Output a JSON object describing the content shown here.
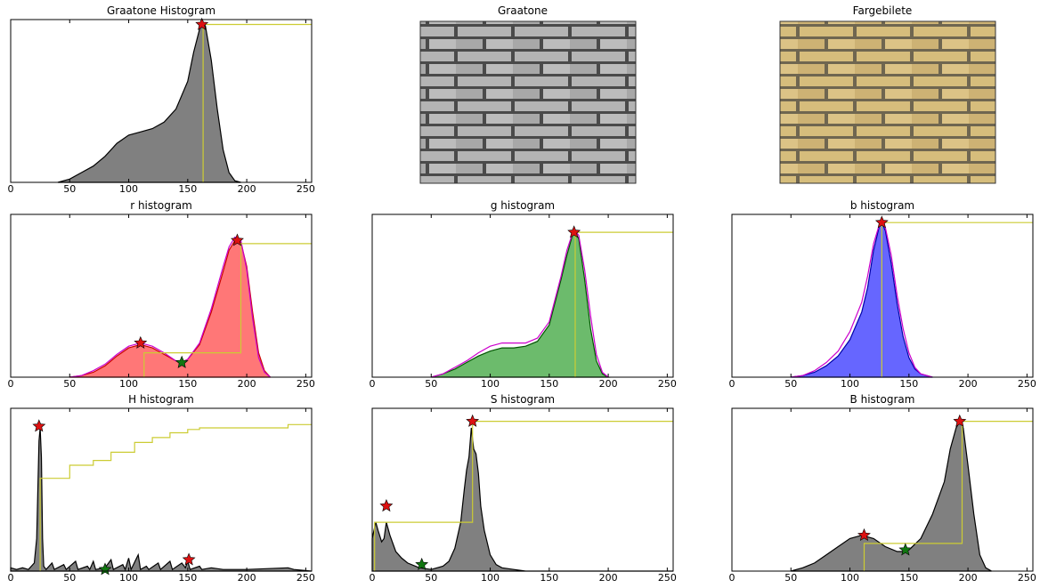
{
  "chart_data": [
    {
      "type": "area",
      "title": "Graatone Histogram",
      "xlim": [
        0,
        255
      ],
      "ylim": [
        0,
        100
      ],
      "xticks": [
        0,
        50,
        100,
        150,
        200,
        250
      ],
      "series": [
        {
          "color": "#808080",
          "edge": "#000000",
          "style": "fill",
          "x": [
            40,
            50,
            60,
            70,
            80,
            90,
            100,
            110,
            120,
            130,
            140,
            150,
            155,
            160,
            163,
            165,
            170,
            175,
            180,
            185,
            190,
            195
          ],
          "values": [
            0,
            2,
            6,
            10,
            16,
            24,
            29,
            31,
            33,
            37,
            45,
            62,
            80,
            94,
            98,
            96,
            75,
            45,
            20,
            6,
            1,
            0
          ]
        },
        {
          "color": "#cccc33",
          "style": "line",
          "x": [
            163,
            163,
            255
          ],
          "values": [
            0,
            97,
            97
          ]
        }
      ],
      "markers": [
        {
          "x": 162,
          "y": 97,
          "color": "#dd1111"
        }
      ]
    },
    {
      "type": "image",
      "title": "Graatone",
      "color": "gray"
    },
    {
      "type": "image",
      "title": "Fargebilete",
      "color": "yellow"
    },
    {
      "type": "area",
      "title": "r histogram",
      "xlim": [
        0,
        255
      ],
      "ylim": [
        0,
        100
      ],
      "xticks": [
        0,
        50,
        100,
        150,
        200,
        250
      ],
      "series": [
        {
          "color": "#ff7777",
          "edge": "#cc0000",
          "style": "fill",
          "x": [
            50,
            60,
            70,
            80,
            90,
            100,
            110,
            120,
            130,
            140,
            145,
            150,
            160,
            170,
            180,
            185,
            190,
            195,
            200,
            205,
            210,
            215,
            220
          ],
          "values": [
            0,
            1,
            3,
            7,
            13,
            18,
            20,
            18,
            14,
            10,
            9,
            11,
            20,
            40,
            65,
            78,
            84,
            83,
            68,
            40,
            15,
            4,
            0
          ]
        },
        {
          "color": "#cc00cc",
          "style": "line",
          "x": [
            50,
            60,
            70,
            80,
            90,
            100,
            110,
            120,
            130,
            140,
            145,
            150,
            160,
            170,
            180,
            185,
            190,
            195,
            200,
            205,
            210,
            215,
            220
          ],
          "values": [
            0,
            1,
            4,
            8,
            14,
            19,
            21,
            19,
            15,
            10,
            9,
            11,
            21,
            42,
            68,
            80,
            86,
            84,
            66,
            36,
            12,
            3,
            0
          ]
        },
        {
          "color": "#cccc33",
          "style": "line",
          "x": [
            113,
            113,
            195,
            195,
            255
          ],
          "values": [
            0,
            15,
            15,
            82,
            82
          ]
        }
      ],
      "markers": [
        {
          "x": 110,
          "y": 21,
          "color": "#dd1111"
        },
        {
          "x": 192,
          "y": 84,
          "color": "#dd1111"
        },
        {
          "x": 145,
          "y": 9,
          "color": "#117711"
        }
      ]
    },
    {
      "type": "area",
      "title": "g histogram",
      "xlim": [
        0,
        255
      ],
      "ylim": [
        0,
        100
      ],
      "xticks": [
        0,
        50,
        100,
        150,
        200,
        250
      ],
      "series": [
        {
          "color": "#6cbb6c",
          "edge": "#005500",
          "style": "fill",
          "x": [
            50,
            60,
            70,
            80,
            90,
            100,
            110,
            120,
            130,
            140,
            150,
            160,
            165,
            170,
            172,
            175,
            180,
            185,
            190,
            195,
            200
          ],
          "values": [
            0,
            2,
            5,
            9,
            13,
            16,
            18,
            18,
            19,
            22,
            32,
            60,
            75,
            88,
            89,
            85,
            60,
            30,
            10,
            2,
            0
          ]
        },
        {
          "color": "#cc00cc",
          "style": "line",
          "x": [
            50,
            60,
            70,
            80,
            90,
            100,
            110,
            120,
            130,
            140,
            150,
            160,
            165,
            170,
            172,
            175,
            180,
            185,
            190,
            195,
            200
          ],
          "values": [
            0,
            2,
            6,
            10,
            15,
            19,
            21,
            21,
            21,
            24,
            34,
            62,
            78,
            89,
            90,
            87,
            66,
            38,
            14,
            3,
            0
          ]
        },
        {
          "color": "#cccc33",
          "style": "line",
          "x": [
            172,
            172,
            255
          ],
          "values": [
            0,
            89,
            89
          ]
        }
      ],
      "markers": [
        {
          "x": 171,
          "y": 89,
          "color": "#dd1111"
        }
      ]
    },
    {
      "type": "area",
      "title": "b histogram",
      "xlim": [
        0,
        255
      ],
      "ylim": [
        0,
        100
      ],
      "xticks": [
        0,
        50,
        100,
        150,
        200,
        250
      ],
      "series": [
        {
          "color": "#6666ff",
          "edge": "#0000aa",
          "style": "fill",
          "x": [
            50,
            60,
            70,
            80,
            90,
            100,
            110,
            115,
            120,
            125,
            127,
            130,
            135,
            140,
            145,
            150,
            155,
            160,
            170
          ],
          "values": [
            0,
            1,
            3,
            7,
            13,
            23,
            40,
            55,
            78,
            93,
            95,
            90,
            70,
            45,
            25,
            12,
            5,
            2,
            0
          ]
        },
        {
          "color": "#cc00cc",
          "style": "line",
          "x": [
            50,
            60,
            70,
            80,
            90,
            100,
            110,
            115,
            120,
            125,
            127,
            130,
            135,
            140,
            145,
            150,
            155,
            160,
            170
          ],
          "values": [
            0,
            1,
            4,
            9,
            16,
            28,
            46,
            62,
            82,
            94,
            95,
            92,
            75,
            50,
            30,
            15,
            6,
            2,
            0
          ]
        },
        {
          "color": "#cccc33",
          "style": "line",
          "x": [
            127,
            127,
            255
          ],
          "values": [
            0,
            95,
            95
          ]
        }
      ],
      "markers": [
        {
          "x": 127,
          "y": 95,
          "color": "#dd1111"
        }
      ]
    },
    {
      "type": "area",
      "title": "H histogram",
      "xlim": [
        0,
        255
      ],
      "ylim": [
        0,
        100
      ],
      "xticks": [
        0,
        50,
        100,
        150,
        200,
        250
      ],
      "series": [
        {
          "color": "#808080",
          "edge": "#000000",
          "style": "fill",
          "x": [
            0,
            5,
            10,
            15,
            20,
            22,
            24,
            25,
            26,
            27,
            28,
            30,
            35,
            37,
            45,
            47,
            55,
            57,
            65,
            67,
            70,
            72,
            80,
            85,
            87,
            95,
            97,
            100,
            102,
            108,
            110,
            115,
            117,
            125,
            127,
            135,
            137,
            145,
            148,
            150,
            152,
            160,
            162,
            170,
            180,
            200,
            235,
            240,
            255
          ],
          "values": [
            2,
            1,
            2,
            1,
            5,
            20,
            80,
            88,
            70,
            20,
            3,
            1,
            5,
            1,
            4,
            1,
            6,
            1,
            3,
            1,
            6,
            1,
            2,
            7,
            1,
            4,
            1,
            8,
            1,
            10,
            1,
            3,
            1,
            5,
            1,
            6,
            1,
            5,
            2,
            6,
            1,
            3,
            1,
            2,
            1,
            1,
            2,
            1,
            0
          ]
        },
        {
          "color": "#cccc33",
          "style": "line",
          "x": [
            25,
            25,
            50,
            50,
            70,
            70,
            85,
            85,
            105,
            105,
            120,
            120,
            135,
            135,
            150,
            150,
            160,
            160,
            235,
            235,
            255
          ],
          "values": [
            0,
            57,
            57,
            65,
            65,
            68,
            68,
            73,
            73,
            79,
            79,
            82,
            82,
            85,
            85,
            87,
            87,
            88,
            88,
            90,
            90
          ]
        }
      ],
      "markers": [
        {
          "x": 24,
          "y": 89,
          "color": "#dd1111"
        },
        {
          "x": 151,
          "y": 7,
          "color": "#dd1111"
        },
        {
          "x": 80,
          "y": 1,
          "color": "#117711"
        }
      ]
    },
    {
      "type": "area",
      "title": "S histogram",
      "xlim": [
        0,
        255
      ],
      "ylim": [
        0,
        100
      ],
      "xticks": [
        0,
        50,
        100,
        150,
        200,
        250
      ],
      "series": [
        {
          "color": "#808080",
          "edge": "#000000",
          "style": "fill",
          "x": [
            0,
            3,
            5,
            8,
            10,
            12,
            15,
            20,
            25,
            30,
            40,
            50,
            60,
            65,
            70,
            75,
            78,
            80,
            82,
            84,
            86,
            88,
            90,
            92,
            95,
            100,
            105,
            110,
            120,
            130,
            255
          ],
          "values": [
            20,
            30,
            25,
            18,
            20,
            30,
            22,
            12,
            8,
            5,
            2,
            1,
            3,
            6,
            14,
            30,
            50,
            62,
            70,
            88,
            75,
            72,
            60,
            40,
            25,
            10,
            4,
            2,
            1,
            0,
            0
          ]
        },
        {
          "color": "#cccc33",
          "style": "line",
          "x": [
            2,
            2,
            85,
            85,
            255
          ],
          "values": [
            0,
            30,
            30,
            92,
            92
          ]
        }
      ],
      "markers": [
        {
          "x": 12,
          "y": 40,
          "color": "#dd1111"
        },
        {
          "x": 85,
          "y": 92,
          "color": "#dd1111"
        },
        {
          "x": 42,
          "y": 4,
          "color": "#117711"
        }
      ]
    },
    {
      "type": "area",
      "title": "B histogram",
      "xlim": [
        0,
        255
      ],
      "ylim": [
        0,
        100
      ],
      "xticks": [
        0,
        50,
        100,
        150,
        200,
        250
      ],
      "series": [
        {
          "color": "#808080",
          "edge": "#000000",
          "style": "fill",
          "x": [
            50,
            60,
            70,
            80,
            90,
            100,
            110,
            120,
            130,
            140,
            147,
            150,
            160,
            170,
            180,
            185,
            190,
            193,
            196,
            200,
            205,
            210,
            215,
            220
          ],
          "values": [
            0,
            2,
            5,
            10,
            15,
            20,
            22,
            20,
            15,
            12,
            12,
            13,
            20,
            35,
            55,
            75,
            88,
            92,
            88,
            65,
            35,
            10,
            2,
            0
          ]
        },
        {
          "color": "#cccc33",
          "style": "line",
          "x": [
            112,
            112,
            195,
            195,
            255
          ],
          "values": [
            0,
            17,
            17,
            92,
            92
          ]
        }
      ],
      "markers": [
        {
          "x": 112,
          "y": 22,
          "color": "#dd1111"
        },
        {
          "x": 193,
          "y": 92,
          "color": "#dd1111"
        },
        {
          "x": 147,
          "y": 13,
          "color": "#117711"
        }
      ]
    }
  ]
}
